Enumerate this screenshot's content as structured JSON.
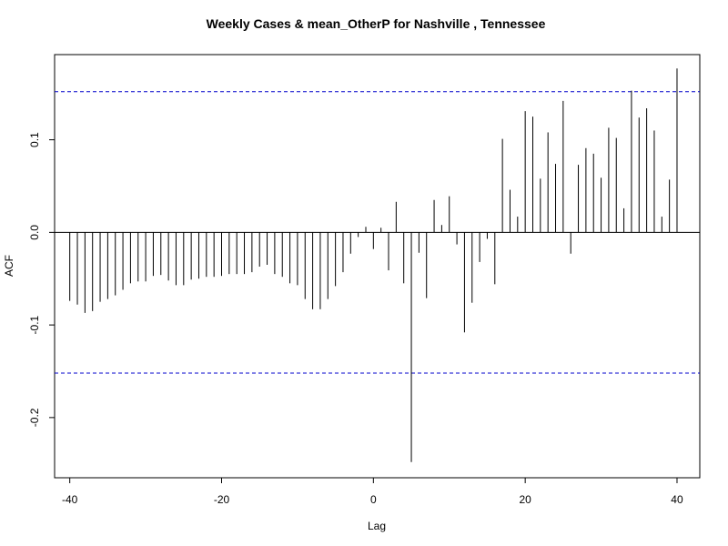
{
  "chart_data": {
    "type": "bar",
    "title": "Weekly Cases & mean_OtherP for Nashville , Tennessee",
    "xlabel": "Lag",
    "ylabel": "ACF",
    "xlim": [
      -42,
      43
    ],
    "ylim": [
      -0.265,
      0.192
    ],
    "x_ticks": [
      -40,
      -20,
      0,
      20,
      40
    ],
    "x_tick_labels": [
      "-40",
      "-20",
      "0",
      "20",
      "40"
    ],
    "y_ticks": [
      -0.2,
      -0.1,
      0.0,
      0.1
    ],
    "y_tick_labels": [
      "-0.2",
      "-0.1",
      "0.0",
      "0.1"
    ],
    "confidence_bound": 0.152,
    "colors": {
      "bars": "#000000",
      "ci": "#0000cc",
      "zero": "#000000"
    },
    "lags": [
      -40,
      -39,
      -38,
      -37,
      -36,
      -35,
      -34,
      -33,
      -32,
      -31,
      -30,
      -29,
      -28,
      -27,
      -26,
      -25,
      -24,
      -23,
      -22,
      -21,
      -20,
      -19,
      -18,
      -17,
      -16,
      -15,
      -14,
      -13,
      -12,
      -11,
      -10,
      -9,
      -8,
      -7,
      -6,
      -5,
      -4,
      -3,
      -2,
      -1,
      0,
      1,
      2,
      3,
      4,
      5,
      6,
      7,
      8,
      9,
      10,
      11,
      12,
      13,
      14,
      15,
      16,
      17,
      18,
      19,
      20,
      21,
      22,
      23,
      24,
      25,
      26,
      27,
      28,
      29,
      30,
      31,
      32,
      33,
      34,
      35,
      36,
      37,
      38,
      39,
      40
    ],
    "values": [
      -0.074,
      -0.078,
      -0.087,
      -0.085,
      -0.075,
      -0.072,
      -0.068,
      -0.062,
      -0.055,
      -0.053,
      -0.053,
      -0.047,
      -0.046,
      -0.052,
      -0.057,
      -0.057,
      -0.051,
      -0.05,
      -0.048,
      -0.048,
      -0.047,
      -0.045,
      -0.045,
      -0.045,
      -0.043,
      -0.037,
      -0.035,
      -0.045,
      -0.048,
      -0.055,
      -0.057,
      -0.072,
      -0.083,
      -0.083,
      -0.072,
      -0.058,
      -0.043,
      -0.023,
      -0.005,
      0.006,
      -0.018,
      0.005,
      -0.041,
      0.033,
      -0.055,
      -0.248,
      -0.022,
      -0.071,
      0.035,
      0.008,
      0.039,
      -0.013,
      -0.108,
      -0.076,
      -0.032,
      -0.007,
      -0.056,
      0.101,
      0.046,
      0.017,
      0.131,
      0.125,
      0.058,
      0.108,
      0.074,
      0.142,
      -0.023,
      0.073,
      0.091,
      0.085,
      0.059,
      0.113,
      0.102,
      0.026,
      0.153,
      0.124,
      0.134,
      0.11,
      0.017,
      0.057,
      0.177
    ]
  }
}
